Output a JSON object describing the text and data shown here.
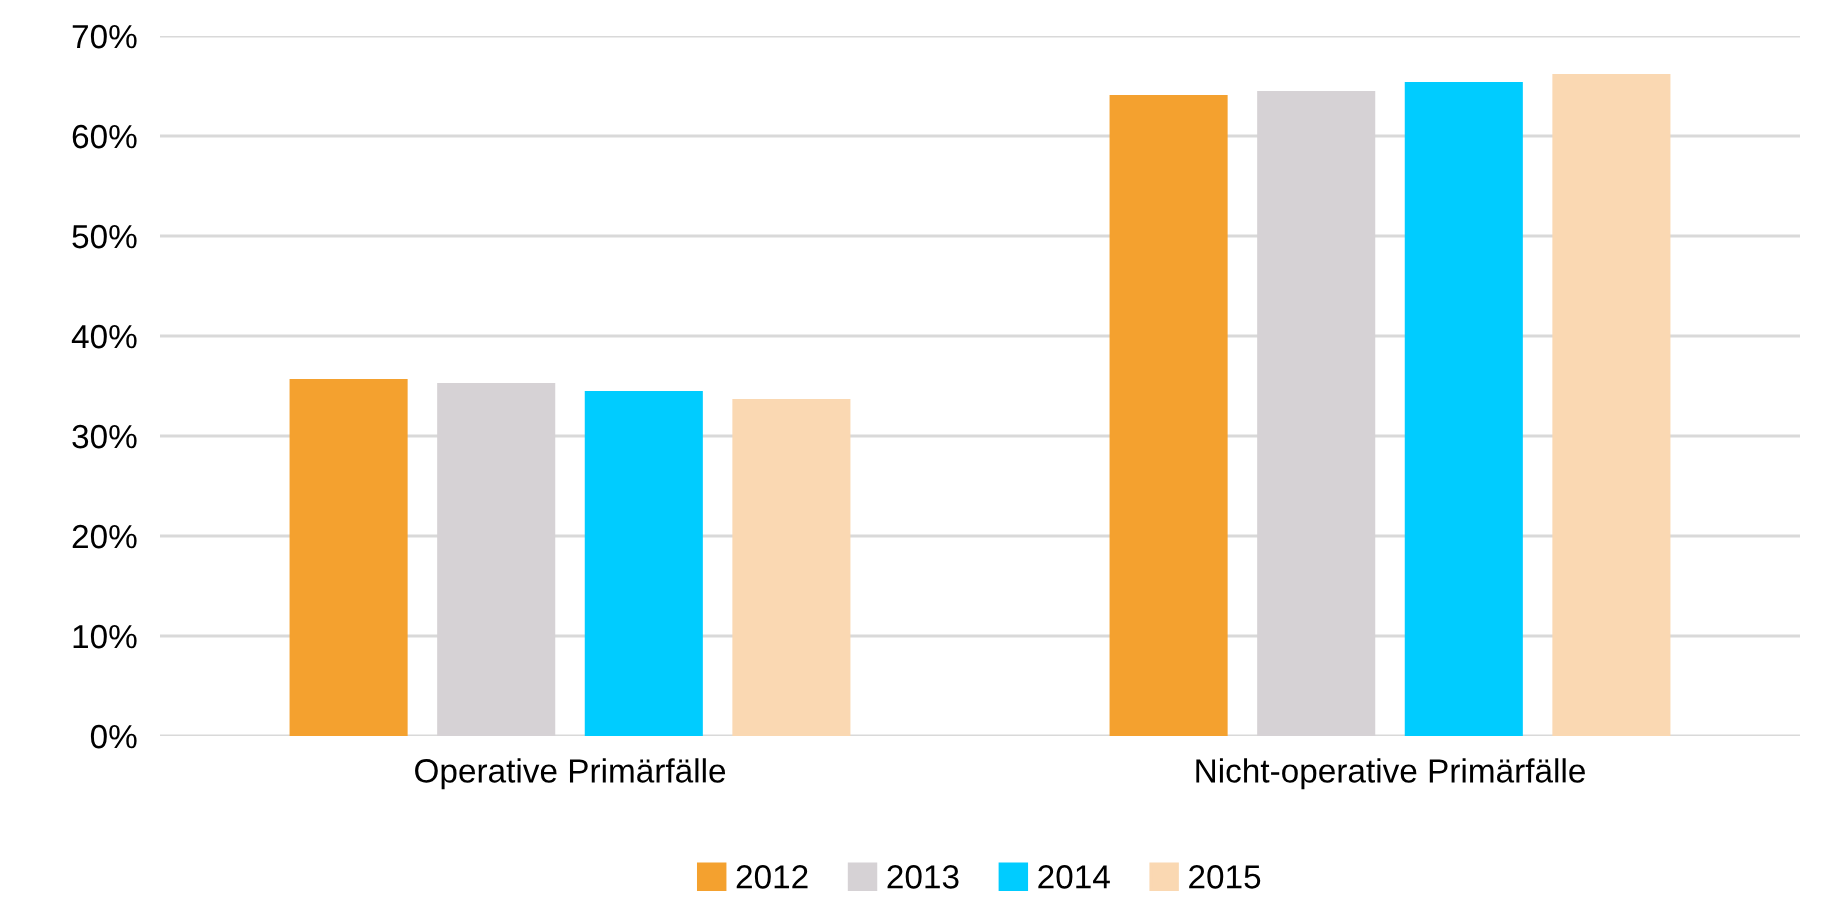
{
  "chart_data": {
    "type": "bar",
    "categories": [
      "Operative Primärfälle",
      "Nicht-operative Primärfälle"
    ],
    "series": [
      {
        "name": "2012",
        "color": "#f4a12f",
        "values": [
          35.7,
          64.1
        ]
      },
      {
        "name": "2013",
        "color": "#d6d2d5",
        "values": [
          35.3,
          64.5
        ]
      },
      {
        "name": "2014",
        "color": "#00ccff",
        "values": [
          34.5,
          65.4
        ]
      },
      {
        "name": "2015",
        "color": "#fad8b2",
        "values": [
          33.7,
          66.2
        ]
      }
    ],
    "ylim": [
      0,
      70
    ],
    "yticks": [
      {
        "value": 0,
        "label": "0%"
      },
      {
        "value": 10,
        "label": "10%"
      },
      {
        "value": 20,
        "label": "20%"
      },
      {
        "value": 30,
        "label": "30%"
      },
      {
        "value": 40,
        "label": "40%"
      },
      {
        "value": 50,
        "label": "50%"
      },
      {
        "value": 60,
        "label": "60%"
      },
      {
        "value": 70,
        "label": "70%"
      }
    ],
    "grid": "y",
    "legend": "bottom"
  }
}
